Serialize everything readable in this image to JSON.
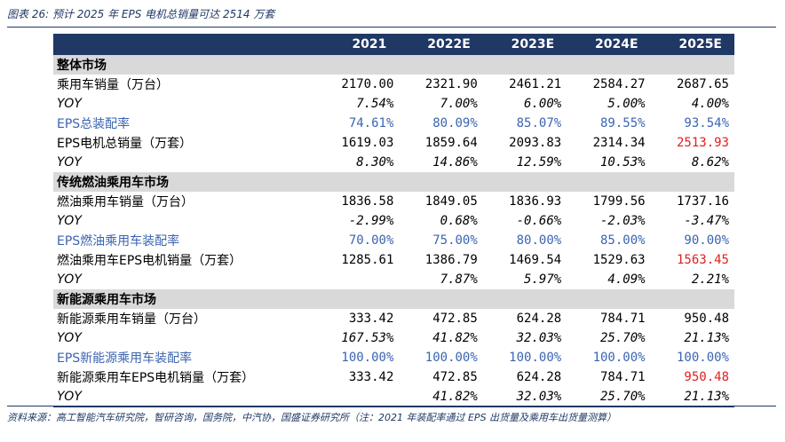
{
  "caption": "图表 26:  预计 2025 年 EPS 电机总销量可达 2514 万套",
  "header": [
    "",
    "2021",
    "2022E",
    "2023E",
    "2024E",
    "2025E"
  ],
  "rows": [
    {
      "type": "section",
      "label": "整体市场"
    },
    {
      "type": "data",
      "label": "乘用车销量（万台）",
      "values": [
        "2170.00",
        "2321.90",
        "2461.21",
        "2584.27",
        "2687.65"
      ]
    },
    {
      "type": "yoy",
      "label": "YOY",
      "values": [
        "7.54%",
        "7.00%",
        "6.00%",
        "5.00%",
        "4.00%"
      ]
    },
    {
      "type": "blue",
      "label": "EPS总装配率",
      "values": [
        "74.61%",
        "80.09%",
        "85.07%",
        "89.55%",
        "93.54%"
      ]
    },
    {
      "type": "data",
      "label": "EPS电机总销量（万套）",
      "values": [
        "1619.03",
        "1859.64",
        "2093.83",
        "2314.34",
        "2513.93"
      ],
      "red_last": true
    },
    {
      "type": "yoy",
      "label": "YOY",
      "values": [
        "8.30%",
        "14.86%",
        "12.59%",
        "10.53%",
        "8.62%"
      ]
    },
    {
      "type": "section",
      "label": "传统燃油乘用车市场"
    },
    {
      "type": "data",
      "label": "燃油乘用车销量（万台）",
      "values": [
        "1836.58",
        "1849.05",
        "1836.93",
        "1799.56",
        "1737.16"
      ]
    },
    {
      "type": "yoy",
      "label": "YOY",
      "values": [
        "-2.99%",
        "0.68%",
        "-0.66%",
        "-2.03%",
        "-3.47%"
      ]
    },
    {
      "type": "blue",
      "label": "EPS燃油乘用车装配率",
      "values": [
        "70.00%",
        "75.00%",
        "80.00%",
        "85.00%",
        "90.00%"
      ]
    },
    {
      "type": "data",
      "label": "燃油乘用车EPS电机销量（万套）",
      "values": [
        "1285.61",
        "1386.79",
        "1469.54",
        "1529.63",
        "1563.45"
      ],
      "red_last": true
    },
    {
      "type": "yoy",
      "label": "YOY",
      "values": [
        "",
        "7.87%",
        "5.97%",
        "4.09%",
        "2.21%"
      ]
    },
    {
      "type": "section",
      "label": "新能源乘用车市场"
    },
    {
      "type": "data",
      "label": "新能源乘用车销量（万台）",
      "values": [
        "333.42",
        "472.85",
        "624.28",
        "784.71",
        "950.48"
      ]
    },
    {
      "type": "yoy",
      "label": "YOY",
      "values": [
        "167.53%",
        "41.82%",
        "32.03%",
        "25.70%",
        "21.13%"
      ]
    },
    {
      "type": "blue",
      "label": "EPS新能源乘用车装配率",
      "values": [
        "100.00%",
        "100.00%",
        "100.00%",
        "100.00%",
        "100.00%"
      ]
    },
    {
      "type": "data",
      "label": "新能源乘用车EPS电机销量（万套）",
      "values": [
        "333.42",
        "472.85",
        "624.28",
        "784.71",
        "950.48"
      ],
      "red_last": true
    },
    {
      "type": "yoy",
      "label": "YOY",
      "values": [
        "",
        "41.82%",
        "32.03%",
        "25.70%",
        "21.13%"
      ]
    }
  ],
  "source": "资料来源：高工智能汽车研究院，智研咨询，国务院，中汽协，国盛证券研究所（注：2021 年装配率通过 EPS 出货量及乘用车出货量测算）"
}
